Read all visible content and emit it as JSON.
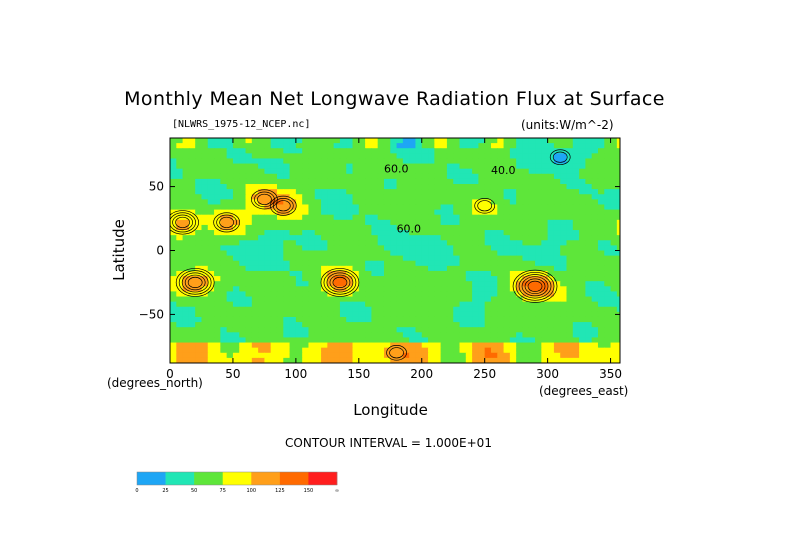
{
  "chart_data": {
    "type": "heatmap",
    "title": "Monthly Mean Net Longwave Radiation Flux at Surface",
    "source_label": "[NLWRS_1975-12_NCEP.nc]",
    "units_label": "(units:W/m^-2)",
    "xlabel": "Longitude",
    "ylabel": "Latitude",
    "x_unit_label": "(degrees_east)",
    "y_unit_label": "(degrees_north)",
    "contour_interval_label": "CONTOUR INTERVAL = 1.000E+01",
    "xlim": [
      0,
      357.5
    ],
    "ylim": [
      -88,
      88
    ],
    "x_ticks": [
      "0",
      "50",
      "100",
      "150",
      "200",
      "250",
      "300",
      "350"
    ],
    "x_tick_values": [
      0,
      50,
      100,
      150,
      200,
      250,
      300,
      350
    ],
    "y_ticks": [
      "50",
      "0",
      "-50"
    ],
    "y_tick_values": [
      50,
      0,
      -50
    ],
    "contour_labels": [
      {
        "text": "60.0",
        "lon": 170,
        "lat": 61
      },
      {
        "text": "40.0",
        "lon": 255,
        "lat": 60
      },
      {
        "text": "60.0",
        "lon": 180,
        "lat": 14
      }
    ],
    "color_scale": {
      "bins": [
        "0",
        "25",
        "50",
        "75",
        "100",
        "125",
        "150",
        "∞"
      ],
      "colors": [
        "#1ea6f5",
        "#21e6b5",
        "#5ee63a",
        "#ffff00",
        "#ff9f1a",
        "#ff6a00",
        "#ff1e1e"
      ]
    },
    "features": [
      {
        "name": "greenland",
        "lon": 310,
        "lat": 73,
        "value": 20
      },
      {
        "name": "sahara",
        "lon": 10,
        "lat": 22,
        "value": 110
      },
      {
        "name": "arabia",
        "lon": 45,
        "lat": 22,
        "value": 105
      },
      {
        "name": "central-asia",
        "lon": 75,
        "lat": 40,
        "value": 95
      },
      {
        "name": "tibet",
        "lon": 90,
        "lat": 35,
        "value": 100
      },
      {
        "name": "sw-north-america",
        "lon": 250,
        "lat": 35,
        "value": 90
      },
      {
        "name": "southern-africa",
        "lon": 20,
        "lat": -25,
        "value": 130
      },
      {
        "name": "australia",
        "lon": 135,
        "lat": -25,
        "value": 125
      },
      {
        "name": "south-america-andes",
        "lon": 290,
        "lat": -28,
        "value": 140
      },
      {
        "name": "antarctica-coast",
        "lon": 180,
        "lat": -80,
        "value": 90
      }
    ]
  }
}
